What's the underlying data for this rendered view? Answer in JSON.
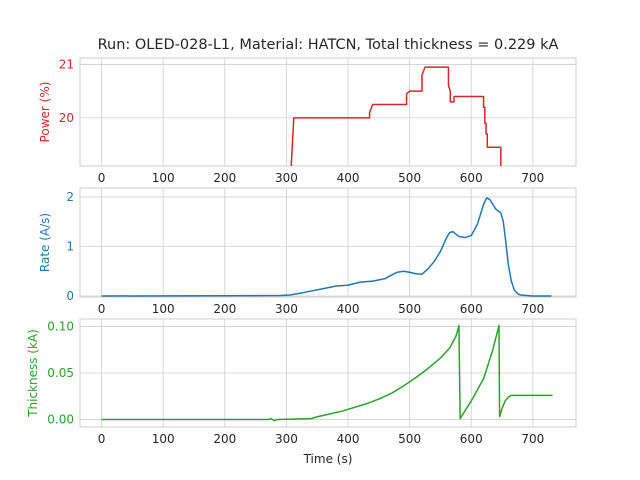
{
  "title": "Run: OLED-028-L1, Material: HATCN, Total thickness = 0.229 kA",
  "xlabel": "Time (s)",
  "chart_data": {
    "type": "line",
    "x_ticks": [
      0,
      100,
      200,
      300,
      400,
      500,
      600,
      700
    ],
    "x_tick_labels": [
      "0",
      "100",
      "200",
      "300",
      "400",
      "500",
      "600",
      "700"
    ],
    "xlim": [
      -35,
      770
    ],
    "grid": true,
    "panels": [
      {
        "name": "power",
        "ylabel": "Power (%)",
        "color": "#d62728",
        "ylim": [
          19.1,
          21.12
        ],
        "y_ticks": [
          20,
          21
        ],
        "y_tick_labels": [
          "20",
          "21"
        ],
        "x": [
          308,
          308,
          312,
          435,
          435,
          440,
          495,
          495,
          500,
          520,
          520,
          525,
          563,
          563,
          566,
          566,
          572,
          572,
          575,
          620,
          620,
          622,
          622,
          624,
          624,
          626,
          626,
          640,
          640,
          648,
          648
        ],
        "y": [
          18.8,
          19.15,
          20.0,
          20.0,
          20.1,
          20.25,
          20.25,
          20.45,
          20.5,
          20.5,
          20.8,
          20.95,
          20.95,
          20.6,
          20.5,
          20.3,
          20.3,
          20.4,
          20.4,
          20.4,
          20.2,
          20.2,
          19.9,
          19.9,
          19.7,
          19.7,
          19.45,
          19.45,
          19.45,
          19.45,
          18.8
        ]
      },
      {
        "name": "rate",
        "ylabel": "Rate (A/s)",
        "color": "#1f77b4",
        "ylim": [
          -0.02,
          2.18
        ],
        "y_ticks": [
          0,
          1,
          2
        ],
        "y_tick_labels": [
          "0",
          "1",
          "2"
        ],
        "x": [
          0,
          290,
          305,
          320,
          340,
          360,
          380,
          400,
          420,
          440,
          460,
          470,
          480,
          490,
          500,
          510,
          520,
          530,
          540,
          550,
          560,
          565,
          570,
          575,
          580,
          590,
          600,
          610,
          615,
          620,
          625,
          630,
          635,
          640,
          648,
          652,
          656,
          660,
          665,
          670,
          675,
          680,
          690,
          700,
          730
        ],
        "y": [
          0,
          0.01,
          0.02,
          0.05,
          0.1,
          0.15,
          0.2,
          0.22,
          0.28,
          0.3,
          0.35,
          0.42,
          0.48,
          0.5,
          0.48,
          0.45,
          0.44,
          0.55,
          0.7,
          0.9,
          1.18,
          1.28,
          1.3,
          1.25,
          1.2,
          1.18,
          1.22,
          1.45,
          1.65,
          1.85,
          1.98,
          1.95,
          1.85,
          1.75,
          1.68,
          1.5,
          1.1,
          0.65,
          0.3,
          0.12,
          0.05,
          0.02,
          0.01,
          0,
          0
        ]
      },
      {
        "name": "thickness",
        "ylabel": "Thickness (kA)",
        "color": "#2ca02c",
        "ylim": [
          -0.008,
          0.108
        ],
        "y_ticks": [
          0.0,
          0.05,
          0.1
        ],
        "y_tick_labels": [
          "0.00",
          "0.05",
          "0.10"
        ],
        "x": [
          0,
          270,
          275,
          280,
          285,
          340,
          350,
          370,
          390,
          410,
          430,
          450,
          470,
          490,
          510,
          530,
          550,
          565,
          575,
          580,
          582,
          600,
          620,
          635,
          645,
          646,
          650,
          655,
          660,
          665,
          670,
          700,
          732
        ],
        "y": [
          0,
          0,
          0.001,
          -0.001,
          0,
          0.001,
          0.003,
          0.006,
          0.009,
          0.013,
          0.017,
          0.022,
          0.028,
          0.036,
          0.045,
          0.055,
          0.066,
          0.077,
          0.089,
          0.101,
          0.001,
          0.02,
          0.044,
          0.075,
          0.101,
          0.003,
          0.012,
          0.02,
          0.024,
          0.026,
          0.026,
          0.026,
          0.026
        ]
      }
    ]
  }
}
